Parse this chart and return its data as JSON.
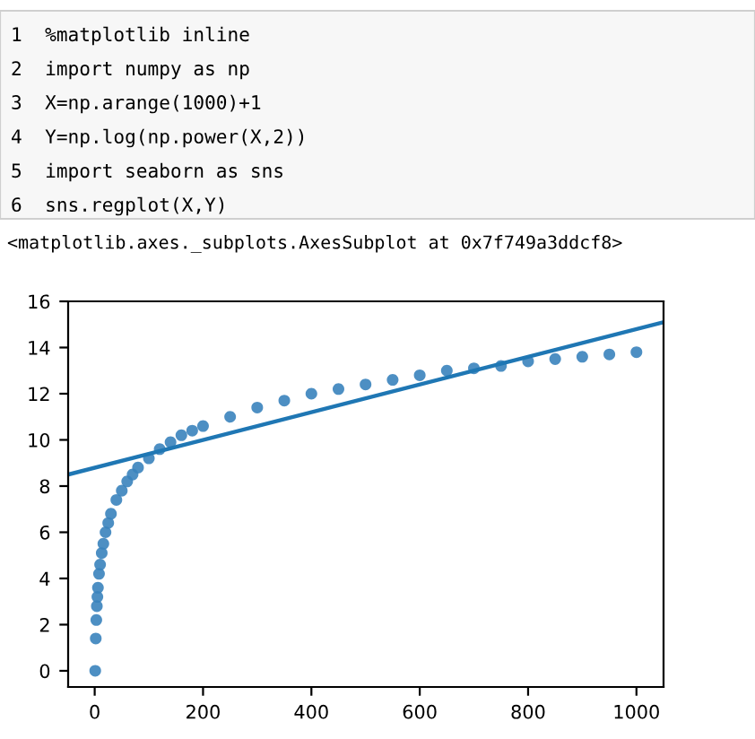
{
  "chart_data": {
    "type": "scatter",
    "annotations": [
      "1  %matplotlib inline",
      "2  import numpy as np",
      "3  X=np.arange(1000)+1",
      "4  Y=np.log(np.power(X,2))",
      "5  import seaborn as sns",
      "6  sns.regplot(X,Y)",
      "<matplotlib.axes._subplots.AxesSubplot at 0x7f749a3ddcf8>"
    ],
    "series": [
      {
        "color": "#3a83bd",
        "marker": "circle",
        "x": [
          1,
          2,
          3,
          4,
          5,
          6,
          8,
          10,
          13,
          16,
          20,
          25,
          30,
          40,
          50,
          60,
          70,
          80,
          100,
          120,
          140,
          160,
          180,
          200,
          250,
          300,
          350,
          400,
          450,
          500,
          550,
          600,
          650,
          700,
          750,
          800,
          850,
          900,
          950,
          1000
        ],
        "values": [
          0,
          1.4,
          2.2,
          2.8,
          3.2,
          3.6,
          4.2,
          4.6,
          5.1,
          5.5,
          6.0,
          6.4,
          6.8,
          7.4,
          7.8,
          8.2,
          8.5,
          8.8,
          9.2,
          9.6,
          9.9,
          10.2,
          10.4,
          10.6,
          11.0,
          11.4,
          11.7,
          12.0,
          12.2,
          12.4,
          12.6,
          12.8,
          13.0,
          13.1,
          13.2,
          13.4,
          13.5,
          13.6,
          13.7,
          13.8
        ]
      },
      {
        "type": "line",
        "color": "#1f77b4",
        "x": [
          -49,
          1050
        ],
        "values": [
          8.5,
          15.1
        ]
      }
    ],
    "xlim": [
      -49,
      1050
    ],
    "xticks": [
      0,
      200,
      400,
      600,
      800,
      1000
    ],
    "ylim": [
      -0.7,
      16
    ],
    "yticks": [
      0,
      2,
      4,
      6,
      8,
      10,
      12,
      14,
      16
    ],
    "grid": false,
    "legend": false
  }
}
